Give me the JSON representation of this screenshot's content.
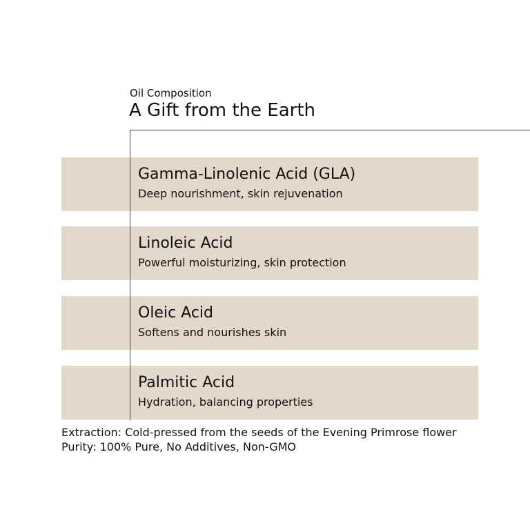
{
  "header": {
    "subtitle": "Oil Composition",
    "title": "A Gift from the Earth"
  },
  "items": [
    {
      "name": "Gamma-Linolenic Acid (GLA)",
      "desc": "Deep nourishment, skin rejuvenation"
    },
    {
      "name": "Linoleic Acid",
      "desc": "Powerful moisturizing, skin protection"
    },
    {
      "name": "Oleic Acid",
      "desc": "Softens and nourishes skin"
    },
    {
      "name": "Palmitic Acid",
      "desc": "Hydration, balancing properties"
    }
  ],
  "footer": {
    "extraction": "Extraction: Cold-pressed from the seeds of the Evening Primrose flower",
    "purity": "Purity: 100% Pure, No Additives, Non-GMO"
  },
  "colors": {
    "band": "#e3d8ca",
    "line": "#444444"
  }
}
